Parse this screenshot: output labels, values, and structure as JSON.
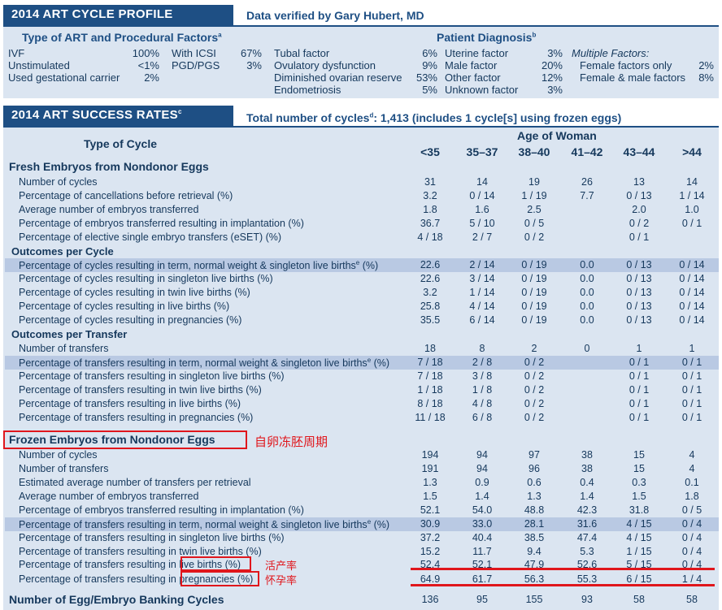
{
  "profile": {
    "title": "2014 ART CYCLE PROFILE",
    "verified": "Data verified by Gary Hubert, MD",
    "art_heading": "Type of ART and Procedural Factors",
    "art_sup": "a",
    "art_items": [
      {
        "label": "IVF",
        "value": "100%"
      },
      {
        "label": "Unstimulated",
        "value": "<1%"
      },
      {
        "label": "Used gestational carrier",
        "value": "2%"
      }
    ],
    "art_items2": [
      {
        "label": "With ICSI",
        "value": "67%"
      },
      {
        "label": "PGD/PGS",
        "value": "3%"
      }
    ],
    "dx_heading": "Patient Diagnosis",
    "dx_sup": "b",
    "dx_col1": [
      {
        "label": "Tubal factor",
        "value": "6%"
      },
      {
        "label": "Ovulatory dysfunction",
        "value": "9%"
      },
      {
        "label": "Diminished ovarian reserve",
        "value": "53%"
      },
      {
        "label": "Endometriosis",
        "value": "5%"
      }
    ],
    "dx_col2": [
      {
        "label": "Uterine factor",
        "value": "3%"
      },
      {
        "label": "Male factor",
        "value": "20%"
      },
      {
        "label": "Other factor",
        "value": "12%"
      },
      {
        "label": "Unknown factor",
        "value": "3%"
      }
    ],
    "mf_heading": "Multiple Factors:",
    "mf_items": [
      {
        "label": "Female factors only",
        "value": "2%"
      },
      {
        "label": "Female & male factors",
        "value": "8%"
      }
    ]
  },
  "success": {
    "title": "2014 ART SUCCESS RATES",
    "title_sup": "c",
    "total_a": "Total number of cycles",
    "total_sup": "d",
    "total_b": ": 1,413 (includes 1 cycle[s] using frozen eggs)",
    "type_of_cycle": "Type of Cycle",
    "age_header": "Age of Woman",
    "age_groups": [
      "<35",
      "35–37",
      "38–40",
      "41–42",
      "43–44",
      ">44"
    ],
    "fresh_heading": "Fresh Embryos from Nondonor Eggs",
    "fresh_rows": [
      {
        "label": "Number of cycles",
        "sup": "",
        "values": [
          "31",
          "14",
          "19",
          "26",
          "13",
          "14"
        ]
      },
      {
        "label": "Percentage of cancellations before retrieval (%)",
        "sup": "",
        "values": [
          "3.2",
          "0 / 14",
          "1 / 19",
          "7.7",
          "0 / 13",
          "1 / 14"
        ]
      },
      {
        "label": "Average number of embryos transferred",
        "sup": "",
        "values": [
          "1.8",
          "1.6",
          "2.5",
          "",
          "2.0",
          "1.0"
        ]
      },
      {
        "label": "Percentage of embryos transferred resulting in implantation (%)",
        "sup": "",
        "values": [
          "36.7",
          "5 / 10",
          "0 / 5",
          "",
          "0 / 2",
          "0 / 1"
        ]
      },
      {
        "label": "Percentage of elective single embryo transfers (eSET) (%)",
        "sup": "",
        "values": [
          "4 / 18",
          "2 / 7",
          "0 / 2",
          "",
          "0 / 1",
          ""
        ]
      }
    ],
    "cycle_heading": "Outcomes per Cycle",
    "cycle_rows": [
      {
        "label": "Percentage of cycles resulting in term, normal weight & singleton live births",
        "sup": "e",
        "tail": " (%)",
        "values": [
          "22.6",
          "2 / 14",
          "0 / 19",
          "0.0",
          "0 / 13",
          "0 / 14"
        ]
      },
      {
        "label": "Percentage of cycles resulting in singleton live births (%)",
        "sup": "",
        "tail": "",
        "values": [
          "22.6",
          "3 / 14",
          "0 / 19",
          "0.0",
          "0 / 13",
          "0 / 14"
        ]
      },
      {
        "label": "Percentage of cycles resulting in twin live births (%)",
        "sup": "",
        "tail": "",
        "values": [
          "3.2",
          "1 / 14",
          "0 / 19",
          "0.0",
          "0 / 13",
          "0 / 14"
        ]
      },
      {
        "label": "Percentage of cycles resulting in live births (%)",
        "sup": "",
        "tail": "",
        "values": [
          "25.8",
          "4 / 14",
          "0 / 19",
          "0.0",
          "0 / 13",
          "0 / 14"
        ]
      },
      {
        "label": "Percentage of cycles resulting in pregnancies (%)",
        "sup": "",
        "tail": "",
        "values": [
          "35.5",
          "6 / 14",
          "0 / 19",
          "0.0",
          "0 / 13",
          "0 / 14"
        ]
      }
    ],
    "transfer_heading": "Outcomes per Transfer",
    "transfer_rows": [
      {
        "label": "Number of transfers",
        "sup": "",
        "tail": "",
        "values": [
          "18",
          "8",
          "2",
          "0",
          "1",
          "1"
        ]
      },
      {
        "label": "Percentage of transfers resulting in term, normal weight & singleton live births",
        "sup": "e",
        "tail": " (%)",
        "values": [
          "7 / 18",
          "2 / 8",
          "0 / 2",
          "",
          "0 / 1",
          "0 / 1"
        ]
      },
      {
        "label": "Percentage of transfers resulting in singleton live births (%)",
        "sup": "",
        "tail": "",
        "values": [
          "7 / 18",
          "3 / 8",
          "0 / 2",
          "",
          "0 / 1",
          "0 / 1"
        ]
      },
      {
        "label": "Percentage of transfers resulting in twin live births (%)",
        "sup": "",
        "tail": "",
        "values": [
          "1 / 18",
          "1 / 8",
          "0 / 2",
          "",
          "0 / 1",
          "0 / 1"
        ]
      },
      {
        "label": "Percentage of transfers resulting in live births (%)",
        "sup": "",
        "tail": "",
        "values": [
          "8 / 18",
          "4 / 8",
          "0 / 2",
          "",
          "0 / 1",
          "0 / 1"
        ]
      },
      {
        "label": "Percentage of transfers resulting in pregnancies (%)",
        "sup": "",
        "tail": "",
        "values": [
          "11 / 18",
          "6 / 8",
          "0 / 2",
          "",
          "0 / 1",
          "0 / 1"
        ]
      }
    ],
    "frozen_heading": "Frozen Embryos from Nondonor Eggs",
    "frozen_note": "自卵冻胚周期",
    "frozen_rows": [
      {
        "label": "Number of cycles",
        "sup": "",
        "tail": "",
        "values": [
          "194",
          "94",
          "97",
          "38",
          "15",
          "4"
        ]
      },
      {
        "label": "Number of transfers",
        "sup": "",
        "tail": "",
        "values": [
          "191",
          "94",
          "96",
          "38",
          "15",
          "4"
        ]
      },
      {
        "label": "Estimated average number of transfers per retrieval",
        "sup": "",
        "tail": "",
        "values": [
          "1.3",
          "0.9",
          "0.6",
          "0.4",
          "0.3",
          "0.1"
        ]
      },
      {
        "label": "Average number of embryos transferred",
        "sup": "",
        "tail": "",
        "values": [
          "1.5",
          "1.4",
          "1.3",
          "1.4",
          "1.5",
          "1.8"
        ]
      },
      {
        "label": "Percentage of embryos transferred resulting in implantation (%)",
        "sup": "",
        "tail": "",
        "values": [
          "52.1",
          "54.0",
          "48.8",
          "42.3",
          "31.8",
          "0 / 5"
        ]
      },
      {
        "label": "Percentage of transfers resulting in term, normal weight & singleton live births",
        "sup": "e",
        "tail": " (%)",
        "values": [
          "30.9",
          "33.0",
          "28.1",
          "31.6",
          "4 / 15",
          "0 / 4"
        ]
      },
      {
        "label": "Percentage of transfers resulting in singleton live births (%)",
        "sup": "",
        "tail": "",
        "values": [
          "37.2",
          "40.4",
          "38.5",
          "47.4",
          "4 / 15",
          "0 / 4"
        ]
      },
      {
        "label": "Percentage of transfers resulting in twin live births (%)",
        "sup": "",
        "tail": "",
        "values": [
          "15.2",
          "11.7",
          "9.4",
          "5.3",
          "1 / 15",
          "0 / 4"
        ]
      }
    ],
    "live_row": {
      "pre": "Percentage of transfers resulting in ",
      "hl": "live births (%)",
      "note": "活产率",
      "values": [
        "52.4",
        "52.1",
        "47.9",
        "52.6",
        "5 / 15",
        "0 / 4"
      ]
    },
    "preg_row": {
      "pre": "Percentage of transfers resulting in ",
      "hl": "pregnancies (%)",
      "note": "怀孕率",
      "values": [
        "64.9",
        "61.7",
        "56.3",
        "55.3",
        "6 / 15",
        "1 / 4"
      ]
    },
    "banking": {
      "label": "Number of Egg/Embryo Banking Cycles",
      "values": [
        "136",
        "95",
        "155",
        "93",
        "58",
        "58"
      ]
    }
  },
  "colors": {
    "header_bg": "#1e4f84",
    "panel_bg": "#dbe5f1",
    "band": "#b9c9e3",
    "annotation": "#e0161c"
  }
}
